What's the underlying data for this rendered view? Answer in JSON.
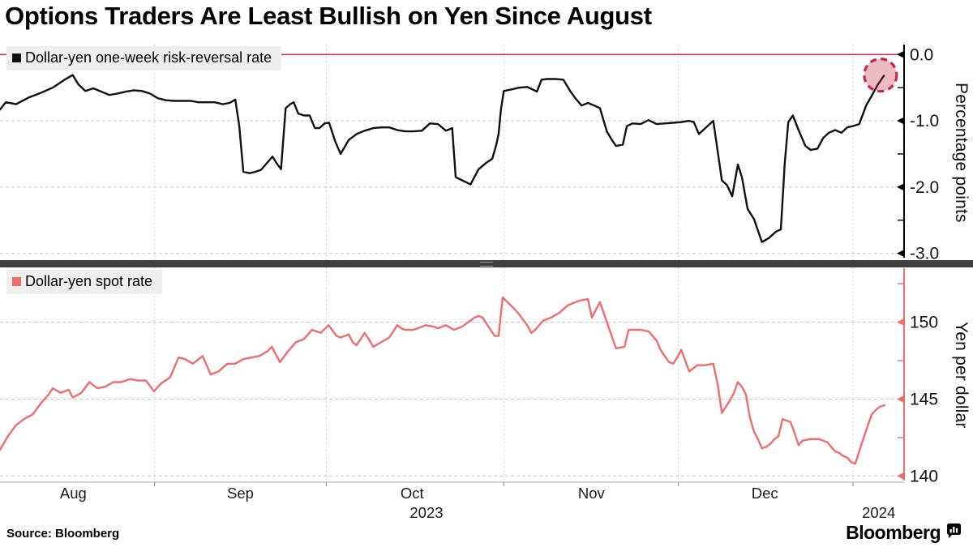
{
  "title": "Options Traders Are Least Bullish on Yen Since August",
  "source": "Source:  Bloomberg",
  "branding": {
    "wordmark": "Bloomberg"
  },
  "colors": {
    "risk_reversal_line": "#111111",
    "spot_line": "#ee6d6d",
    "zero_line": "#cf3350",
    "top_axis": "#000000",
    "bottom_axis": "#ee6d6d",
    "grid": "#c9c9c9",
    "vgrid": "#d4d4d4",
    "divider": "#3e3e3e",
    "legend_bg": "#efefef",
    "highlight_fill": "rgba(197,43,73,0.32)",
    "highlight_stroke": "#c52b49",
    "baseline": "#aaaaaa"
  },
  "x_axis": {
    "span_note": "days since 2023-08-05, early Aug 2023 through early Jan 2024",
    "month_ticks_days": [
      27,
      57,
      88,
      118.5,
      149
    ],
    "month_labels": [
      {
        "label": "Aug",
        "day": 12.8
      },
      {
        "label": "Sep",
        "day": 42
      },
      {
        "label": "Oct",
        "day": 72
      },
      {
        "label": "Nov",
        "day": 103.3
      },
      {
        "label": "Dec",
        "day": 133.6
      }
    ],
    "year_labels": [
      {
        "label": "2023",
        "day": 74.5
      },
      {
        "label": "2024",
        "day": 153.5
      }
    ]
  },
  "chart_data": [
    {
      "type": "line",
      "panel": "top",
      "series_name": "Dollar-yen one-week risk-reversal rate",
      "ylabel": "Percentage points",
      "y_ticks": [
        "0.0",
        "-1.0",
        "-2.0",
        "-3.0"
      ],
      "y_tick_values": [
        0,
        -1,
        -2,
        -3
      ],
      "y_minor_ticks": [
        -0.5,
        -1.5,
        -2.5
      ],
      "ylim": [
        0.15,
        -3.09
      ],
      "zero_line_value": 0,
      "grid": "dashed",
      "legend_position": "top-left",
      "highlight": {
        "day": 153.8,
        "value": -0.31,
        "radius_px": 20
      },
      "points": [
        [
          0,
          -0.83
        ],
        [
          1,
          -0.72
        ],
        [
          2.8,
          -0.75
        ],
        [
          5,
          -0.65
        ],
        [
          7.1,
          -0.58
        ],
        [
          9.2,
          -0.5
        ],
        [
          11.3,
          -0.38
        ],
        [
          12.7,
          -0.31
        ],
        [
          13.7,
          -0.45
        ],
        [
          14.9,
          -0.55
        ],
        [
          16.3,
          -0.51
        ],
        [
          17.7,
          -0.56
        ],
        [
          19.1,
          -0.61
        ],
        [
          20.5,
          -0.59
        ],
        [
          22,
          -0.56
        ],
        [
          23.4,
          -0.54
        ],
        [
          24.8,
          -0.55
        ],
        [
          26.2,
          -0.59
        ],
        [
          27.6,
          -0.66
        ],
        [
          29,
          -0.69
        ],
        [
          30.5,
          -0.7
        ],
        [
          31.9,
          -0.7
        ],
        [
          33.3,
          -0.7
        ],
        [
          34.7,
          -0.72
        ],
        [
          36.1,
          -0.72
        ],
        [
          37.5,
          -0.72
        ],
        [
          38.9,
          -0.75
        ],
        [
          40.1,
          -0.73
        ],
        [
          41.1,
          -0.68
        ],
        [
          41.8,
          -1.08
        ],
        [
          42.5,
          -1.77
        ],
        [
          43.6,
          -1.79
        ],
        [
          44.6,
          -1.77
        ],
        [
          45.6,
          -1.74
        ],
        [
          46.7,
          -1.63
        ],
        [
          47.6,
          -1.54
        ],
        [
          48.4,
          -1.65
        ],
        [
          49.1,
          -1.73
        ],
        [
          49.9,
          -0.81
        ],
        [
          50.7,
          -0.75
        ],
        [
          51.3,
          -0.72
        ],
        [
          52.1,
          -0.89
        ],
        [
          53.1,
          -0.92
        ],
        [
          54.1,
          -0.92
        ],
        [
          55,
          -1.11
        ],
        [
          55.8,
          -1.11
        ],
        [
          56.7,
          -1.04
        ],
        [
          57.5,
          -1.03
        ],
        [
          58.6,
          -1.32
        ],
        [
          59.5,
          -1.5
        ],
        [
          60.9,
          -1.29
        ],
        [
          62.3,
          -1.2
        ],
        [
          63.7,
          -1.15
        ],
        [
          65.2,
          -1.11
        ],
        [
          66.6,
          -1.1
        ],
        [
          68,
          -1.1
        ],
        [
          69.4,
          -1.14
        ],
        [
          70.8,
          -1.16
        ],
        [
          72.2,
          -1.16
        ],
        [
          73.7,
          -1.15
        ],
        [
          75.1,
          -1.04
        ],
        [
          76.5,
          -1.05
        ],
        [
          77.9,
          -1.15
        ],
        [
          79,
          -1.11
        ],
        [
          79.6,
          -1.85
        ],
        [
          81,
          -1.91
        ],
        [
          82.2,
          -1.96
        ],
        [
          83.6,
          -1.73
        ],
        [
          85,
          -1.63
        ],
        [
          86,
          -1.57
        ],
        [
          86.7,
          -1.36
        ],
        [
          87.1,
          -1.2
        ],
        [
          87.5,
          -0.83
        ],
        [
          88,
          -0.55
        ],
        [
          89.2,
          -0.53
        ],
        [
          90.7,
          -0.5
        ],
        [
          92.1,
          -0.49
        ],
        [
          93.1,
          -0.53
        ],
        [
          93.8,
          -0.56
        ],
        [
          94.6,
          -0.38
        ],
        [
          95.6,
          -0.37
        ],
        [
          97,
          -0.37
        ],
        [
          98.4,
          -0.38
        ],
        [
          99.6,
          -0.55
        ],
        [
          100.6,
          -0.67
        ],
        [
          101.6,
          -0.77
        ],
        [
          102.7,
          -0.73
        ],
        [
          103.8,
          -0.77
        ],
        [
          104.8,
          -0.81
        ],
        [
          106,
          -1.16
        ],
        [
          106.9,
          -1.29
        ],
        [
          107.6,
          -1.38
        ],
        [
          108.8,
          -1.36
        ],
        [
          109.5,
          -1.08
        ],
        [
          110.5,
          -1.04
        ],
        [
          111.9,
          -1.05
        ],
        [
          113.3,
          -0.99
        ],
        [
          114.7,
          -1.05
        ],
        [
          116.1,
          -1.04
        ],
        [
          117.6,
          -1.03
        ],
        [
          119,
          -1.02
        ],
        [
          120.4,
          -1.0
        ],
        [
          121.2,
          -1.02
        ],
        [
          122.1,
          -1.2
        ],
        [
          123.2,
          -1.11
        ],
        [
          124.6,
          -1.0
        ],
        [
          126.1,
          -1.9
        ],
        [
          127,
          -1.97
        ],
        [
          127.9,
          -2.14
        ],
        [
          128.9,
          -1.66
        ],
        [
          129.6,
          -1.85
        ],
        [
          130.6,
          -2.33
        ],
        [
          131.7,
          -2.48
        ],
        [
          133.1,
          -2.83
        ],
        [
          134.3,
          -2.77
        ],
        [
          135.6,
          -2.67
        ],
        [
          136.4,
          -2.64
        ],
        [
          137.1,
          -1.63
        ],
        [
          137.7,
          -1.02
        ],
        [
          138.5,
          -0.92
        ],
        [
          139.5,
          -1.14
        ],
        [
          140.7,
          -1.38
        ],
        [
          141.6,
          -1.44
        ],
        [
          142.8,
          -1.42
        ],
        [
          143.8,
          -1.26
        ],
        [
          144.8,
          -1.18
        ],
        [
          145.9,
          -1.14
        ],
        [
          147,
          -1.18
        ],
        [
          148,
          -1.1
        ],
        [
          149,
          -1.08
        ],
        [
          150.1,
          -1.05
        ],
        [
          151.3,
          -0.77
        ],
        [
          152.3,
          -0.62
        ],
        [
          153.3,
          -0.46
        ],
        [
          154.4,
          -0.32
        ]
      ]
    },
    {
      "type": "line",
      "panel": "bottom",
      "series_name": "Dollar-yen spot rate",
      "ylabel": "Yen per dollar",
      "y_ticks": [
        "150",
        "145",
        "140"
      ],
      "y_tick_values": [
        150,
        145,
        140
      ],
      "y_minor_ticks": [
        152.5,
        147.5,
        142.5
      ],
      "ylim": [
        153.5,
        139.6
      ],
      "grid": "dashed",
      "legend_position": "top-left",
      "points": [
        [
          0,
          141.7
        ],
        [
          1.4,
          142.6
        ],
        [
          2.8,
          143.3
        ],
        [
          4.2,
          143.7
        ],
        [
          5.7,
          144.0
        ],
        [
          7.1,
          144.7
        ],
        [
          8.5,
          145.3
        ],
        [
          9.2,
          145.7
        ],
        [
          10.6,
          145.4
        ],
        [
          12,
          145.6
        ],
        [
          12.7,
          145.1
        ],
        [
          14.2,
          145.4
        ],
        [
          15.6,
          146.1
        ],
        [
          17,
          145.7
        ],
        [
          18.4,
          145.8
        ],
        [
          19.8,
          146.1
        ],
        [
          21.2,
          146.1
        ],
        [
          22.7,
          146.3
        ],
        [
          24.1,
          146.2
        ],
        [
          25.5,
          146.2
        ],
        [
          26.9,
          145.5
        ],
        [
          28.1,
          146.0
        ],
        [
          29.7,
          146.4
        ],
        [
          31.2,
          147.7
        ],
        [
          32.3,
          147.6
        ],
        [
          33.7,
          147.3
        ],
        [
          35.4,
          147.8
        ],
        [
          36.8,
          146.6
        ],
        [
          38.2,
          146.8
        ],
        [
          39.7,
          147.3
        ],
        [
          41.1,
          147.3
        ],
        [
          42.5,
          147.6
        ],
        [
          43.9,
          147.7
        ],
        [
          45.3,
          147.8
        ],
        [
          46.7,
          148.1
        ],
        [
          47.5,
          148.4
        ],
        [
          48.9,
          147.4
        ],
        [
          50.3,
          148.1
        ],
        [
          51.7,
          148.7
        ],
        [
          53.1,
          148.9
        ],
        [
          54.5,
          149.5
        ],
        [
          56,
          149.3
        ],
        [
          57.4,
          149.8
        ],
        [
          58.8,
          149.1
        ],
        [
          59.5,
          149.0
        ],
        [
          60.9,
          149.2
        ],
        [
          61.6,
          148.7
        ],
        [
          62.3,
          148.5
        ],
        [
          63.7,
          149.3
        ],
        [
          64.4,
          148.9
        ],
        [
          65.2,
          148.4
        ],
        [
          66.6,
          148.7
        ],
        [
          68,
          149.0
        ],
        [
          69.4,
          149.8
        ],
        [
          70.1,
          149.6
        ],
        [
          70.8,
          149.5
        ],
        [
          72.2,
          149.5
        ],
        [
          73.7,
          149.7
        ],
        [
          74.4,
          149.8
        ],
        [
          75.8,
          149.7
        ],
        [
          76.5,
          149.6
        ],
        [
          77.9,
          149.8
        ],
        [
          79.3,
          149.5
        ],
        [
          80.7,
          149.7
        ],
        [
          82.2,
          150.1
        ],
        [
          82.9,
          150.3
        ],
        [
          83.6,
          150.4
        ],
        [
          84.3,
          150.3
        ],
        [
          85.7,
          149.5
        ],
        [
          86.4,
          149.1
        ],
        [
          87.1,
          149.1
        ],
        [
          87.8,
          151.6
        ],
        [
          89.2,
          151.1
        ],
        [
          90,
          150.8
        ],
        [
          90.7,
          150.5
        ],
        [
          92.1,
          149.8
        ],
        [
          92.8,
          149.3
        ],
        [
          93.5,
          149.5
        ],
        [
          94.9,
          150.1
        ],
        [
          96.3,
          150.3
        ],
        [
          97.7,
          150.6
        ],
        [
          99.2,
          151.1
        ],
        [
          100.6,
          151.3
        ],
        [
          101.3,
          151.4
        ],
        [
          102.7,
          151.5
        ],
        [
          103.4,
          150.3
        ],
        [
          104.8,
          151.3
        ],
        [
          106.2,
          149.8
        ],
        [
          107.6,
          148.3
        ],
        [
          109.1,
          148.4
        ],
        [
          109.8,
          149.5
        ],
        [
          111.9,
          149.5
        ],
        [
          113.3,
          149.4
        ],
        [
          114.7,
          148.8
        ],
        [
          115.4,
          148.2
        ],
        [
          116.1,
          147.8
        ],
        [
          116.9,
          147.4
        ],
        [
          117.6,
          147.3
        ],
        [
          118.3,
          147.7
        ],
        [
          119,
          148.2
        ],
        [
          119.7,
          147.5
        ],
        [
          120.4,
          146.8
        ],
        [
          121.1,
          147.0
        ],
        [
          121.8,
          147.2
        ],
        [
          123.2,
          147.2
        ],
        [
          124.6,
          147.3
        ],
        [
          125.4,
          145.9
        ],
        [
          126.1,
          144.1
        ],
        [
          126.8,
          144.5
        ],
        [
          127.5,
          144.9
        ],
        [
          128.2,
          145.4
        ],
        [
          128.9,
          146.1
        ],
        [
          129.6,
          145.8
        ],
        [
          130.3,
          145.3
        ],
        [
          131,
          143.8
        ],
        [
          131.7,
          142.9
        ],
        [
          132.4,
          142.4
        ],
        [
          133.1,
          141.8
        ],
        [
          133.9,
          141.9
        ],
        [
          134.6,
          142.1
        ],
        [
          135.3,
          142.4
        ],
        [
          136,
          142.6
        ],
        [
          136.7,
          143.7
        ],
        [
          137.4,
          143.6
        ],
        [
          138.1,
          143.5
        ],
        [
          138.8,
          142.8
        ],
        [
          139.5,
          142.0
        ],
        [
          140.2,
          142.3
        ],
        [
          141.6,
          142.4
        ],
        [
          143,
          142.4
        ],
        [
          144.5,
          142.2
        ],
        [
          145.2,
          141.9
        ],
        [
          145.9,
          141.6
        ],
        [
          146.6,
          141.5
        ],
        [
          147.3,
          141.3
        ],
        [
          148,
          141.2
        ],
        [
          148.7,
          140.9
        ],
        [
          149.4,
          140.8
        ],
        [
          150.1,
          141.6
        ],
        [
          150.8,
          142.4
        ],
        [
          151.6,
          143.3
        ],
        [
          152.3,
          144.0
        ],
        [
          153,
          144.3
        ],
        [
          153.7,
          144.5
        ],
        [
          154.5,
          144.6
        ]
      ]
    }
  ]
}
